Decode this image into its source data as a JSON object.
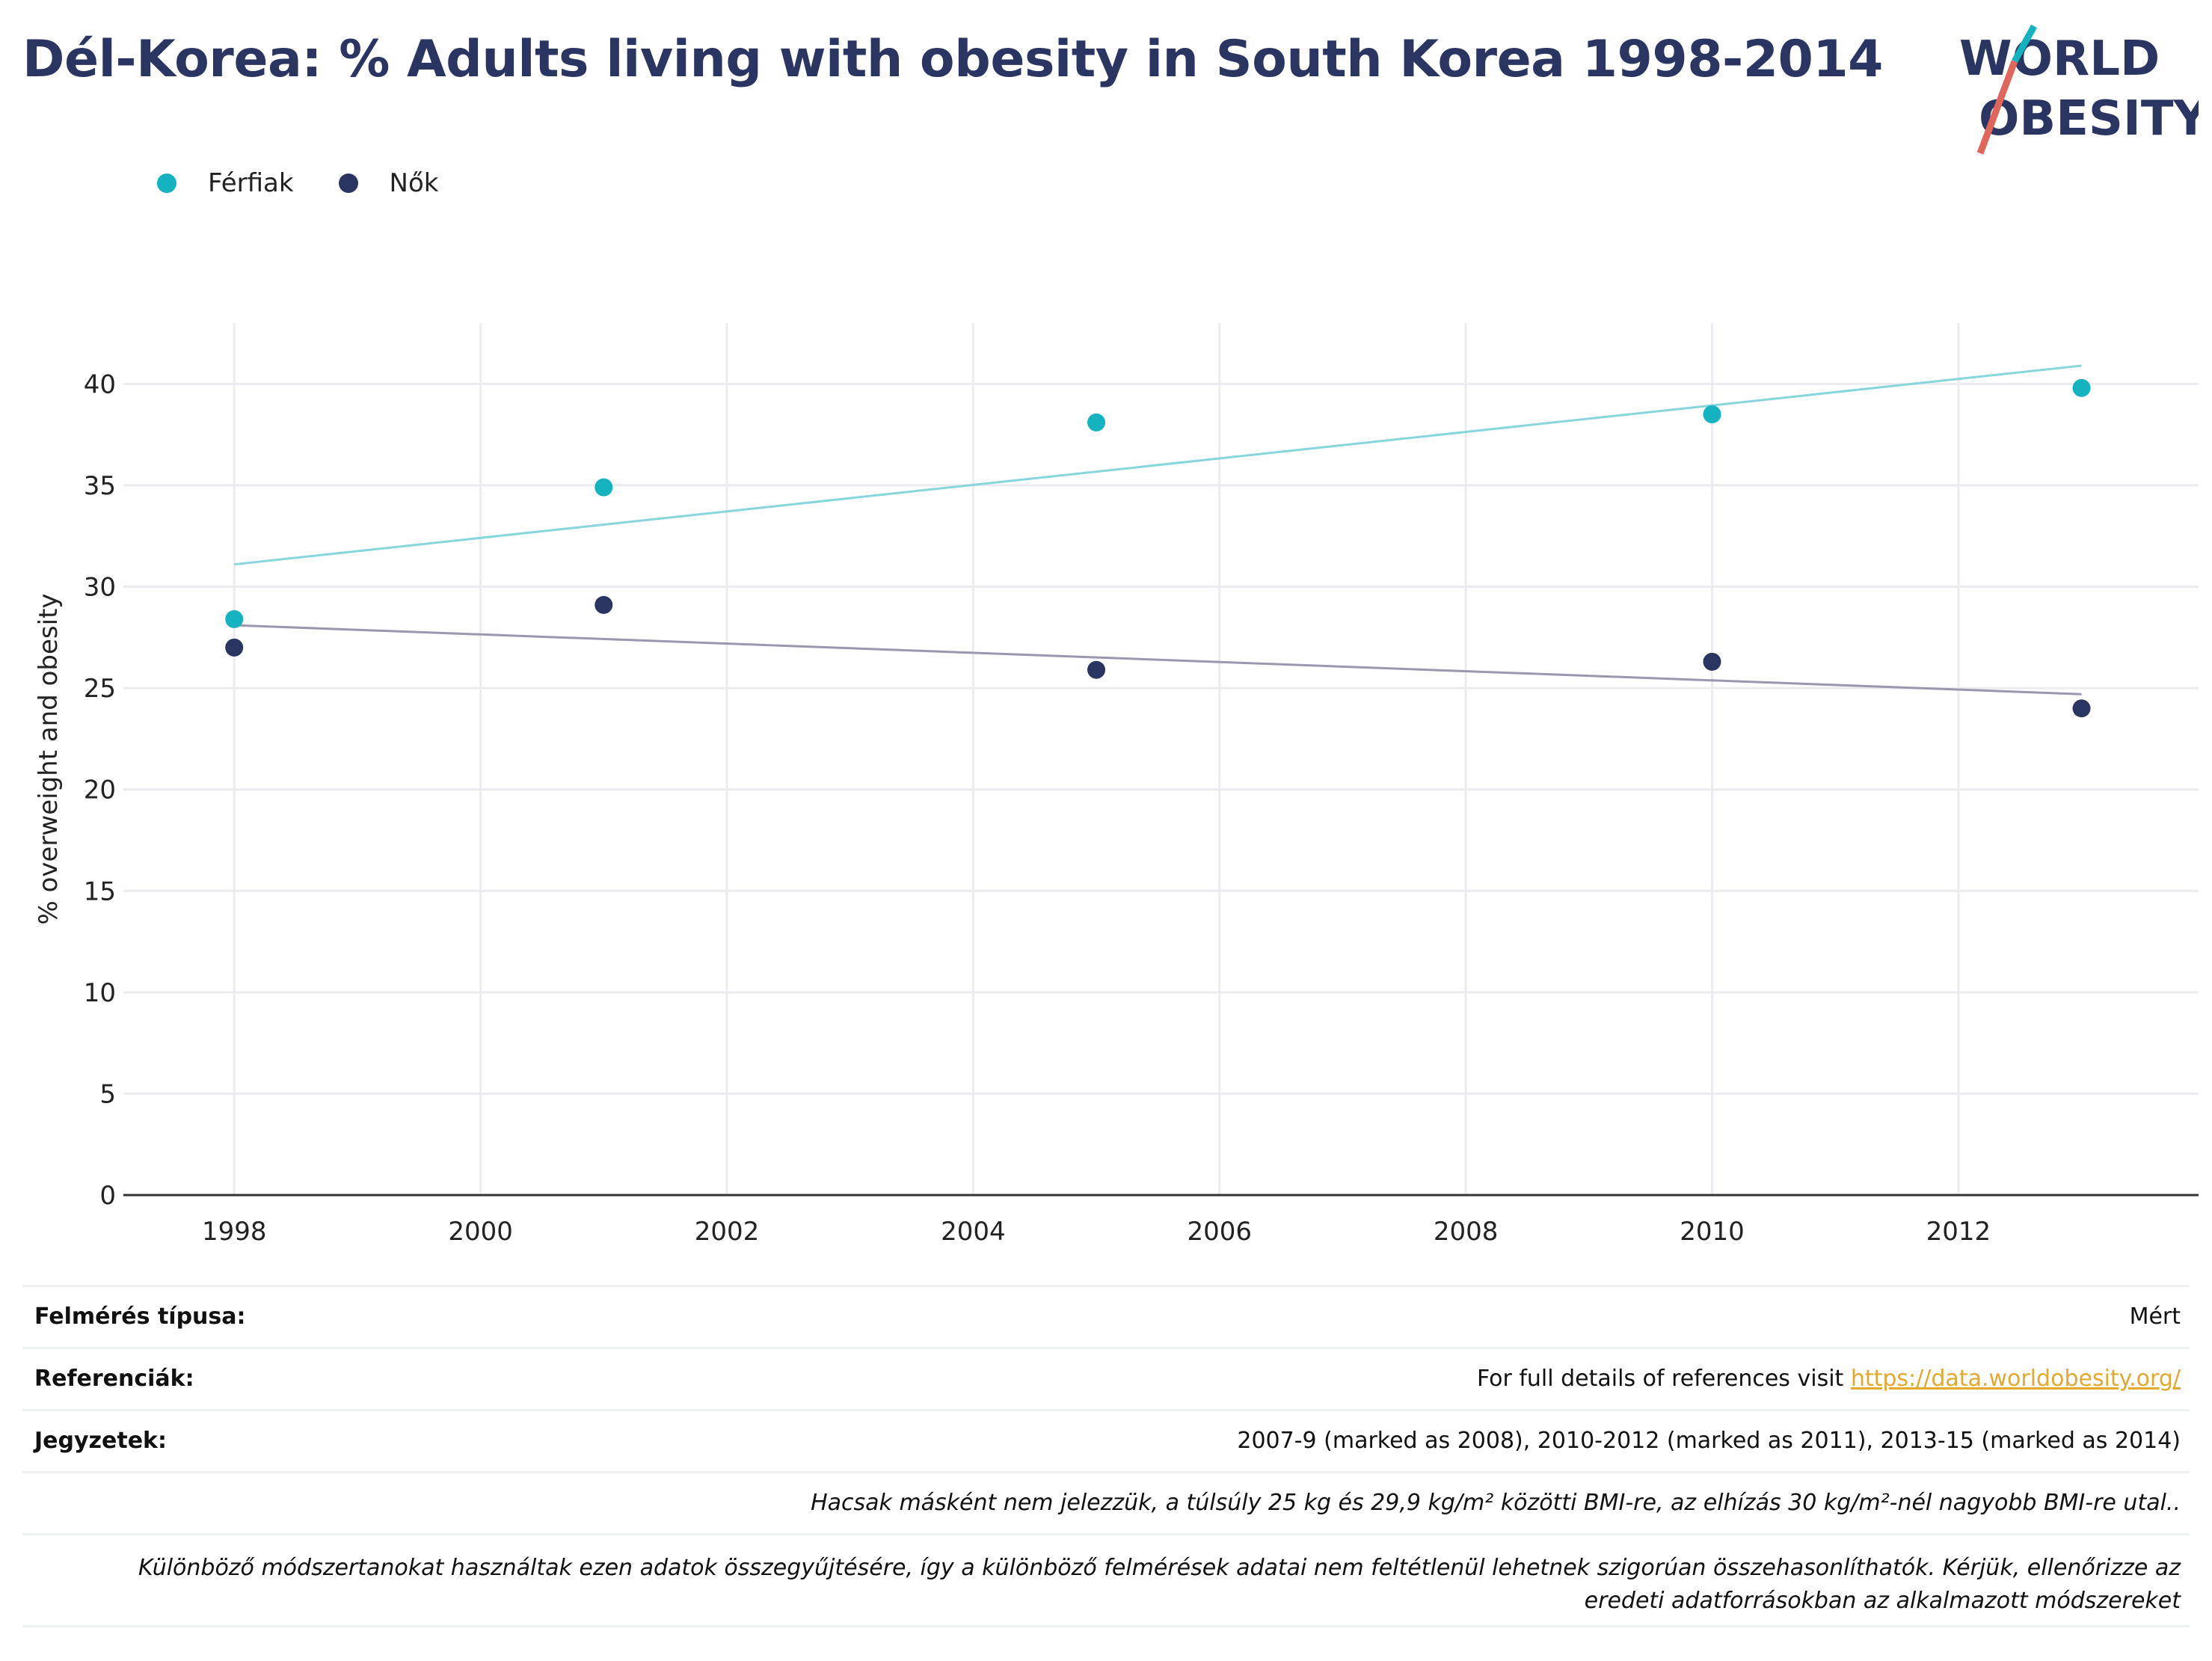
{
  "title": "Dél-Korea: % Adults living with obesity in South Korea 1998-2014",
  "logo": {
    "line1": "WORLD",
    "line2": "OBESITY"
  },
  "colors": {
    "men": "#14b3bf",
    "women": "#2b3561",
    "men_trend": "#86d6db",
    "women_trend": "#9a98ae",
    "accent_red": "#e0655a"
  },
  "legend": [
    {
      "label": "Férfiak",
      "color": "#14b3bf"
    },
    {
      "label": "Nők",
      "color": "#2b3561"
    }
  ],
  "chart_data": {
    "type": "scatter",
    "ylabel": "% overweight and obesity",
    "xlabel": "",
    "xlim": [
      1997.1,
      2013.95
    ],
    "ylim": [
      0,
      43
    ],
    "x_ticks": [
      1998,
      2000,
      2002,
      2004,
      2006,
      2008,
      2010,
      2012
    ],
    "y_ticks": [
      0,
      5,
      10,
      15,
      20,
      25,
      30,
      35,
      40
    ],
    "grid": true,
    "legend_position": "top-left",
    "series": [
      {
        "name": "Férfiak",
        "color": "#14b3bf",
        "x": [
          1998,
          2001,
          2005,
          2010,
          2013
        ],
        "y": [
          28.4,
          34.9,
          38.1,
          38.5,
          39.8
        ],
        "trend": {
          "x": [
            1998,
            2013
          ],
          "y": [
            31.1,
            40.9
          ],
          "color": "#86d6db"
        }
      },
      {
        "name": "Nők",
        "color": "#2b3561",
        "x": [
          1998,
          2001,
          2005,
          2010,
          2013
        ],
        "y": [
          27.0,
          29.1,
          25.9,
          26.3,
          24.0
        ],
        "trend": {
          "x": [
            1998,
            2013
          ],
          "y": [
            28.1,
            24.7
          ],
          "color": "#9a98ae"
        }
      }
    ]
  },
  "footer": {
    "survey_type_label": "Felmérés típusa:",
    "survey_type_value": "Mért",
    "references_label": "Referenciák:",
    "references_text": "For full details of references visit ",
    "references_link": "https://data.worldobesity.org/",
    "notes_label": "Jegyzetek:",
    "notes_value": "2007-9 (marked as 2008), 2010-2012 (marked as 2011), 2013-15 (marked as 2014)",
    "bmi_note": "Hacsak másként nem jelezzük, a túlsúly 25 kg és 29,9 kg/m² közötti BMI-re, az elhízás 30 kg/m²-nél nagyobb BMI-re utal..",
    "method_note_1": "Különböző módszertanokat használtak ezen adatok összegyűjtésére, így a különböző felmérések adatai nem feltétlenül lehetnek szigorúan összehasonlíthatók. Kérjük, ellenőrizze az",
    "method_note_2": "eredeti adatforrásokban az alkalmazott módszereket"
  }
}
